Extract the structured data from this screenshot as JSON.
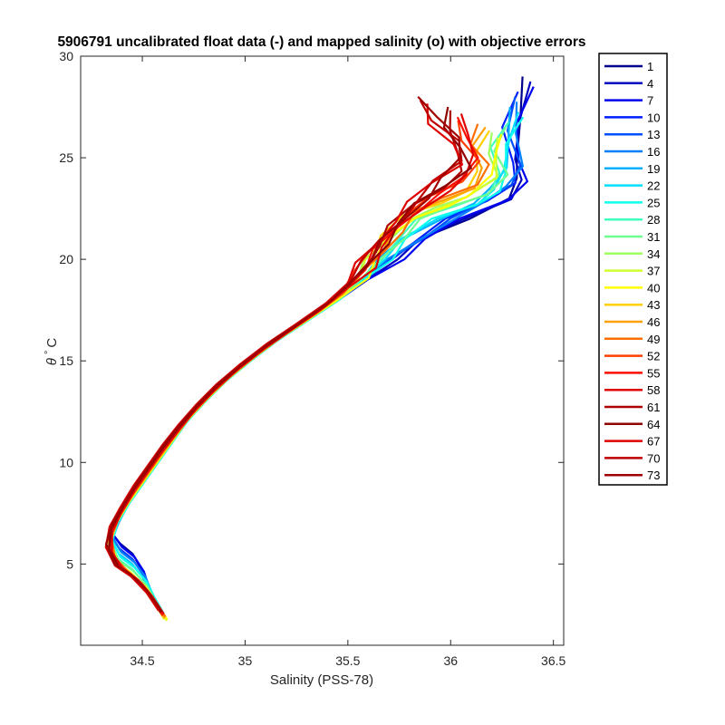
{
  "chart_data": {
    "type": "line",
    "title": "5906791 uncalibrated float data (-) and mapped salinity (o) with objective errors",
    "xlabel": "Salinity (PSS-78)",
    "ylabel_symbol": "θ",
    "ylabel_unit": "° C",
    "xlim": [
      34.2,
      36.55
    ],
    "ylim": [
      1,
      30
    ],
    "xticks": [
      34.5,
      35,
      35.5,
      36,
      36.5
    ],
    "xtick_labels": [
      "34.5",
      "35",
      "35.5",
      "36",
      "36.5"
    ],
    "yticks": [
      5,
      10,
      15,
      20,
      25,
      30
    ],
    "ytick_labels": [
      "5",
      "10",
      "15",
      "20",
      "25",
      "30"
    ],
    "grid": false,
    "legend_placement": "outside-top-right",
    "colormap": "jet",
    "series": [
      {
        "name": "1",
        "color": "#00008f"
      },
      {
        "name": "4",
        "color": "#0000bf"
      },
      {
        "name": "7",
        "color": "#0000ef"
      },
      {
        "name": "10",
        "color": "#001fff"
      },
      {
        "name": "13",
        "color": "#004fff"
      },
      {
        "name": "16",
        "color": "#007fff"
      },
      {
        "name": "19",
        "color": "#00afff"
      },
      {
        "name": "22",
        "color": "#00dfff"
      },
      {
        "name": "25",
        "color": "#0fffef"
      },
      {
        "name": "28",
        "color": "#3fffbf"
      },
      {
        "name": "31",
        "color": "#6fff8f"
      },
      {
        "name": "34",
        "color": "#9fff5f"
      },
      {
        "name": "37",
        "color": "#cfff2f"
      },
      {
        "name": "40",
        "color": "#ffff00"
      },
      {
        "name": "43",
        "color": "#ffcf00"
      },
      {
        "name": "46",
        "color": "#ff9f00"
      },
      {
        "name": "49",
        "color": "#ff6f00"
      },
      {
        "name": "52",
        "color": "#ff3f00"
      },
      {
        "name": "55",
        "color": "#ff0f00"
      },
      {
        "name": "58",
        "color": "#df0000"
      },
      {
        "name": "61",
        "color": "#af0000"
      },
      {
        "name": "64",
        "color": "#8f0000"
      },
      {
        "name": "67",
        "color": "#df0000"
      },
      {
        "name": "70",
        "color": "#bf0000"
      },
      {
        "name": "73",
        "color": "#a00000"
      }
    ],
    "legend_entries": [
      "1",
      "4",
      "7",
      "10",
      "13",
      "16",
      "19",
      "22",
      "25",
      "28",
      "31",
      "34",
      "37",
      "40",
      "43",
      "46",
      "49",
      "52",
      "55",
      "58",
      "61",
      "64",
      "67",
      "70",
      "73"
    ],
    "profile_shape": {
      "early": [
        [
          36.38,
          29.0
        ],
        [
          36.34,
          27.0
        ],
        [
          36.36,
          25.0
        ],
        [
          36.38,
          24.0
        ],
        [
          36.3,
          23.0
        ],
        [
          36.1,
          22.0
        ],
        [
          35.9,
          21.0
        ],
        [
          35.75,
          20.0
        ],
        [
          35.6,
          19.0
        ],
        [
          35.45,
          18.0
        ],
        [
          35.3,
          17.0
        ],
        [
          35.15,
          16.0
        ],
        [
          35.02,
          15.0
        ],
        [
          34.9,
          14.0
        ],
        [
          34.8,
          13.0
        ],
        [
          34.71,
          12.0
        ],
        [
          34.64,
          11.0
        ],
        [
          34.57,
          10.0
        ],
        [
          34.5,
          9.0
        ],
        [
          34.43,
          8.0
        ],
        [
          34.38,
          7.0
        ],
        [
          34.36,
          6.5
        ],
        [
          34.4,
          6.0
        ],
        [
          34.46,
          5.5
        ],
        [
          34.5,
          4.8
        ],
        [
          34.52,
          4.0
        ],
        [
          34.55,
          3.3
        ],
        [
          34.6,
          2.5
        ],
        [
          34.63,
          2.0
        ]
      ],
      "middle": [
        [
          36.25,
          26.0
        ],
        [
          36.2,
          25.0
        ],
        [
          36.22,
          24.0
        ],
        [
          36.1,
          23.0
        ],
        [
          35.95,
          22.5
        ],
        [
          35.8,
          22.0
        ],
        [
          35.7,
          21.0
        ],
        [
          35.62,
          20.0
        ],
        [
          35.55,
          19.0
        ],
        [
          35.45,
          18.0
        ],
        [
          35.3,
          17.0
        ],
        [
          35.15,
          16.0
        ],
        [
          35.02,
          15.0
        ],
        [
          34.9,
          14.0
        ],
        [
          34.8,
          13.0
        ],
        [
          34.71,
          12.0
        ],
        [
          34.64,
          11.0
        ],
        [
          34.57,
          10.0
        ],
        [
          34.5,
          9.0
        ],
        [
          34.43,
          8.0
        ],
        [
          34.37,
          7.0
        ],
        [
          34.34,
          6.0
        ],
        [
          34.38,
          5.0
        ],
        [
          34.45,
          4.5
        ],
        [
          34.52,
          3.8
        ],
        [
          34.57,
          3.0
        ],
        [
          34.62,
          2.2
        ]
      ],
      "late": [
        [
          35.85,
          28.0
        ],
        [
          35.9,
          27.0
        ],
        [
          36.0,
          26.0
        ],
        [
          36.05,
          25.0
        ],
        [
          35.95,
          24.0
        ],
        [
          35.85,
          23.0
        ],
        [
          35.75,
          22.0
        ],
        [
          35.67,
          21.0
        ],
        [
          35.6,
          20.0
        ],
        [
          35.52,
          19.0
        ],
        [
          35.42,
          18.0
        ],
        [
          35.28,
          17.0
        ],
        [
          35.13,
          16.0
        ],
        [
          35.0,
          15.0
        ],
        [
          34.88,
          14.0
        ],
        [
          34.78,
          13.0
        ],
        [
          34.69,
          12.0
        ],
        [
          34.61,
          11.0
        ],
        [
          34.54,
          10.0
        ],
        [
          34.47,
          9.0
        ],
        [
          34.41,
          8.0
        ],
        [
          34.35,
          7.0
        ],
        [
          34.32,
          6.0
        ],
        [
          34.36,
          5.0
        ],
        [
          34.44,
          4.5
        ],
        [
          34.52,
          3.7
        ],
        [
          34.58,
          2.8
        ],
        [
          34.64,
          1.9
        ]
      ]
    }
  }
}
